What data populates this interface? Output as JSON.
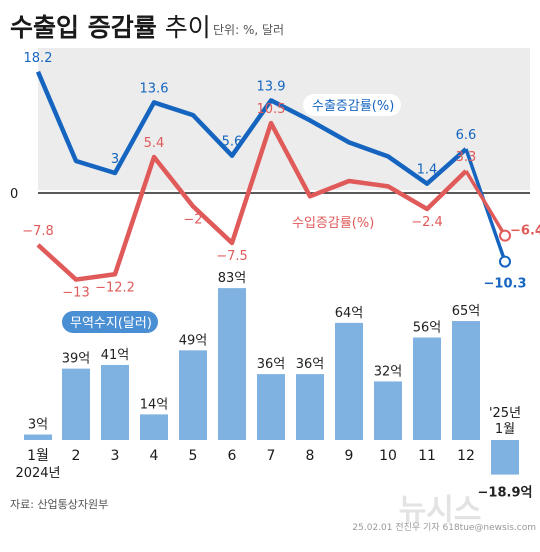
{
  "header": {
    "title": "수출입 증감률",
    "title_suffix": "추이",
    "unit": "단위: %, 달러"
  },
  "source": "자료: 산업통상자원부",
  "credit": "25.02.01 전진우 기자 618tue@newsis.com",
  "watermark": "뉴시스",
  "colors": {
    "export": "#1565c0",
    "import": "#e05a5a",
    "bar": "#7fb2e0",
    "band": "#ececec",
    "zero_line": "#222222"
  },
  "chart_data": [
    {
      "type": "line",
      "categories": [
        "1",
        "2",
        "3",
        "4",
        "5",
        "6",
        "7",
        "8",
        "9",
        "10",
        "11",
        "12",
        "'25년 1월"
      ],
      "series": [
        {
          "name": "수출증감률(%)",
          "values": [
            18.2,
            4.8,
            3,
            13.6,
            11.7,
            5.6,
            13.9,
            10.9,
            7.6,
            5.5,
            1.4,
            6.6,
            -10.3
          ],
          "labels": [
            "18.2",
            "",
            "3",
            "13.6",
            "",
            "5.6",
            "13.9",
            "",
            "",
            "",
            "1.4",
            "6.6",
            "−10.3"
          ]
        },
        {
          "name": "수입증감률(%)",
          "values": [
            -7.8,
            -13,
            -12.2,
            5.4,
            -2,
            -7.5,
            10.5,
            -0.5,
            1.8,
            1.0,
            -2.4,
            3.3,
            -6.4
          ],
          "labels": [
            "−7.8",
            "−13",
            "−12.2",
            "5.4",
            "−2",
            "−7.5",
            "10.5",
            "",
            "",
            "",
            "−2.4",
            "3.3",
            "−6.4"
          ]
        }
      ],
      "zero_label": "0"
    },
    {
      "type": "bar",
      "series_name": "무역수지(달러)",
      "categories": [
        "1월",
        "2",
        "3",
        "4",
        "5",
        "6",
        "7",
        "8",
        "9",
        "10",
        "11",
        "12",
        "'25년 1월"
      ],
      "year_label": "2024년",
      "values": [
        3,
        39,
        41,
        14,
        49,
        83,
        36,
        36,
        64,
        32,
        56,
        65,
        -18.9
      ],
      "value_labels": [
        "3억",
        "39억",
        "41억",
        "14억",
        "49억",
        "83억",
        "36억",
        "36억",
        "64억",
        "32억",
        "56억",
        "65억",
        "−18.9억"
      ]
    }
  ]
}
